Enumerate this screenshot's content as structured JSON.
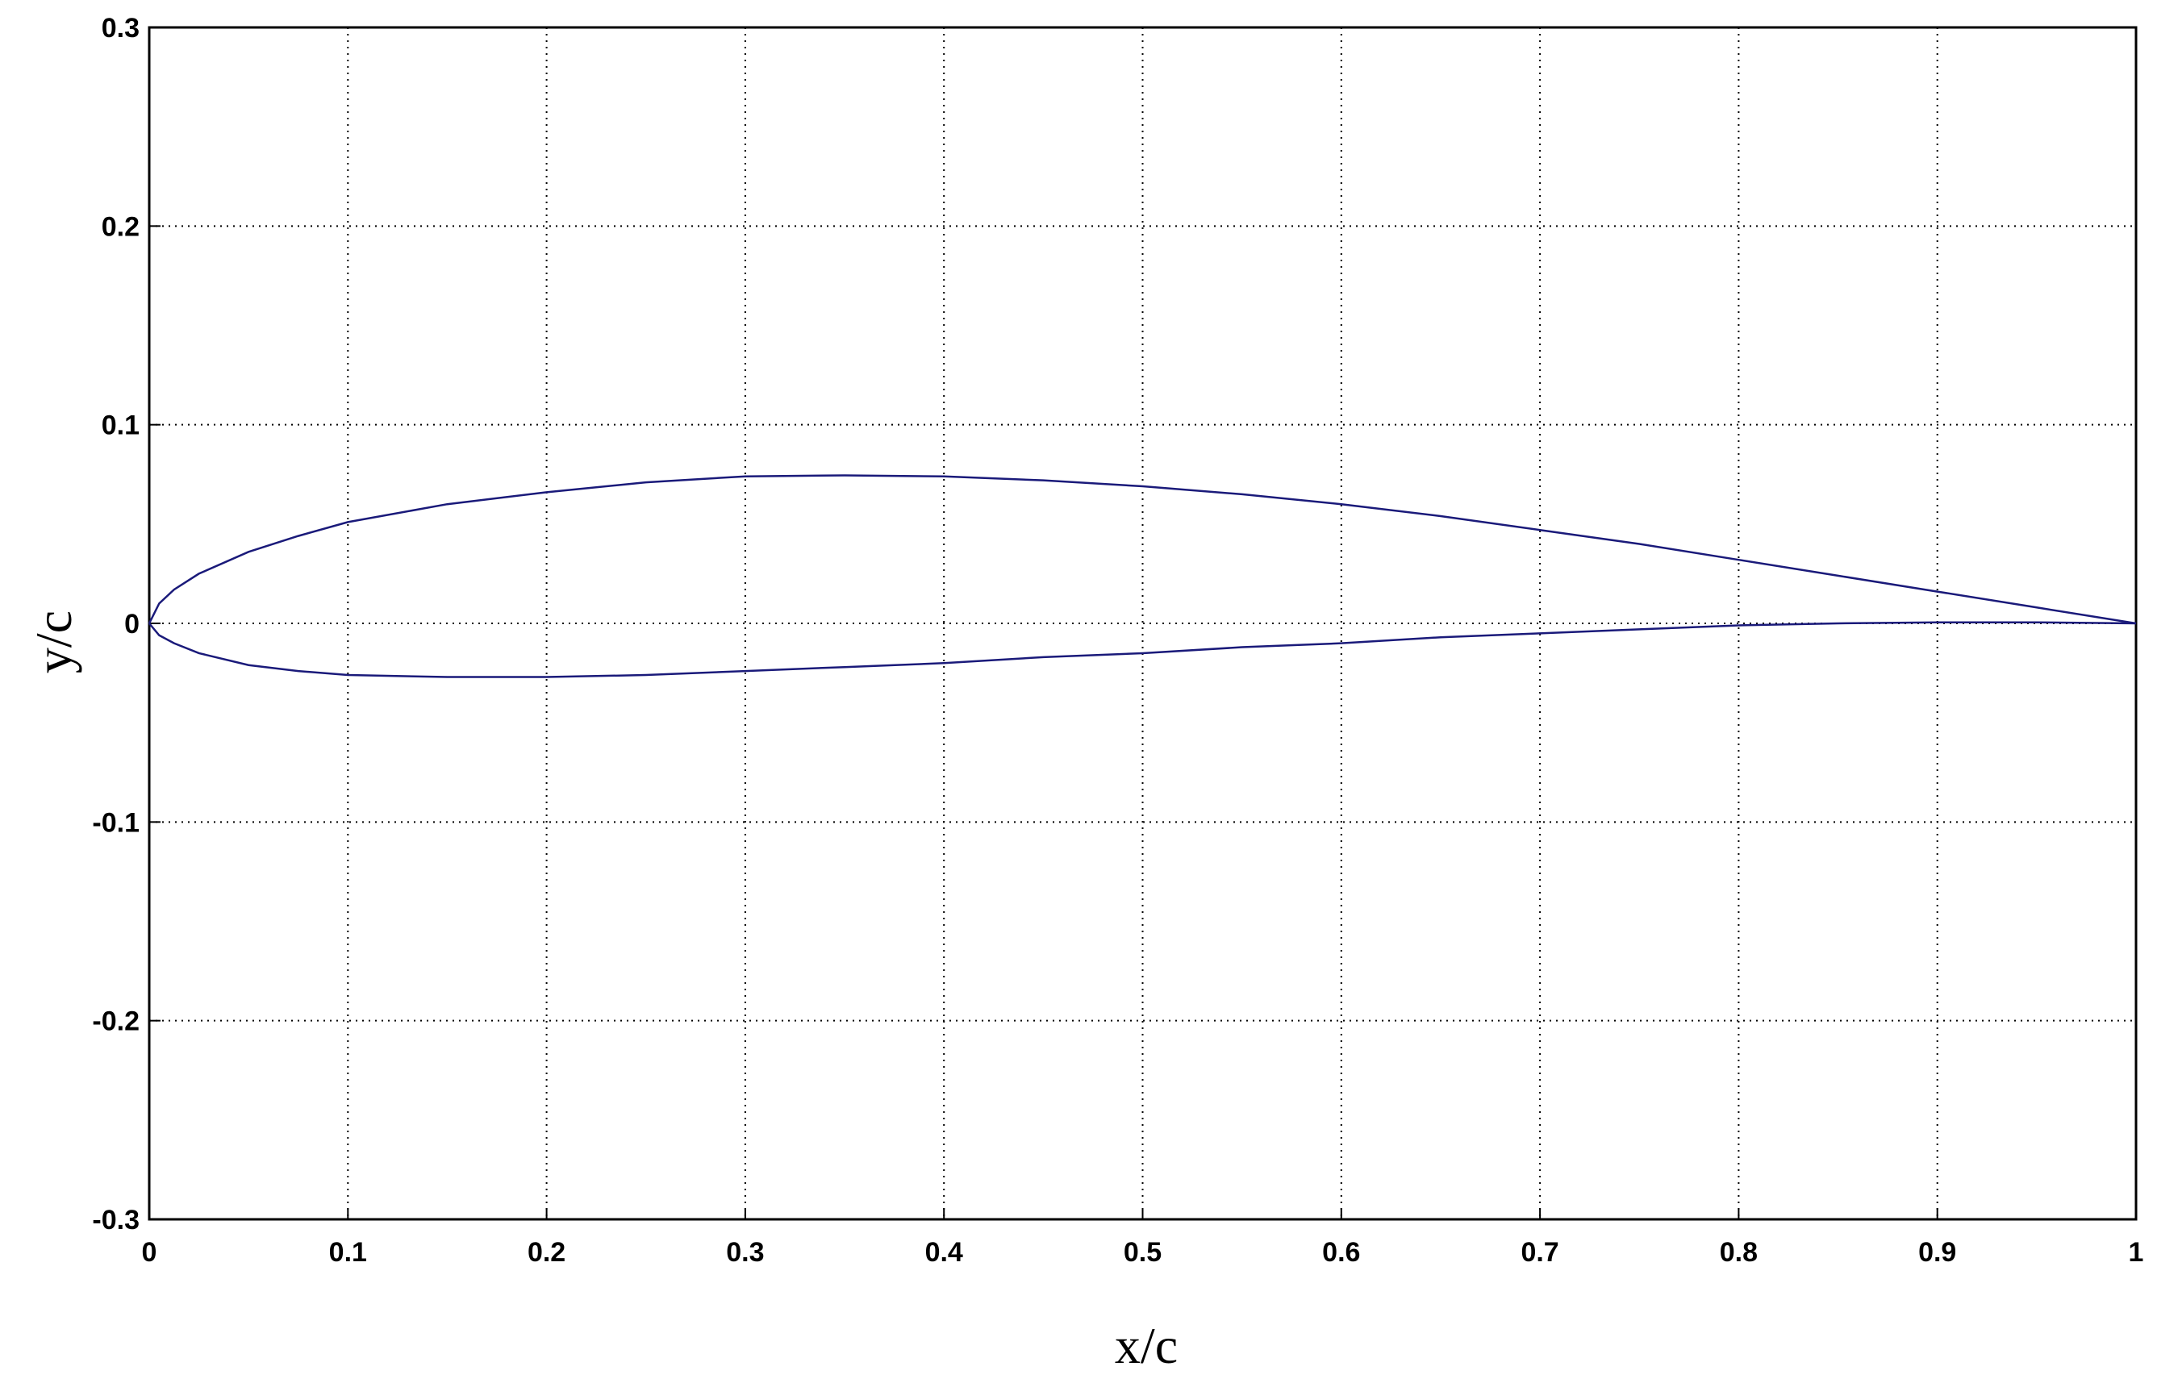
{
  "chart_data": {
    "type": "line",
    "x_label": "x/c",
    "y_label": "y/c",
    "x": [
      0,
      0.005,
      0.0125,
      0.025,
      0.05,
      0.075,
      0.1,
      0.15,
      0.2,
      0.25,
      0.3,
      0.35,
      0.4,
      0.45,
      0.5,
      0.55,
      0.6,
      0.65,
      0.7,
      0.75,
      0.8,
      0.85,
      0.9,
      0.95,
      1
    ],
    "series": [
      {
        "color": "#1a1a7a",
        "values": [
          0,
          0.01,
          0.017,
          0.025,
          0.036,
          0.044,
          0.051,
          0.06,
          0.066,
          0.071,
          0.074,
          0.0745,
          0.074,
          0.072,
          0.069,
          0.065,
          0.06,
          0.054,
          0.047,
          0.04,
          0.032,
          0.024,
          0.016,
          0.008,
          0
        ]
      },
      {
        "color": "#1a1a7a",
        "values": [
          0,
          -0.006,
          -0.01,
          -0.015,
          -0.021,
          -0.024,
          -0.026,
          -0.027,
          -0.027,
          -0.026,
          -0.024,
          -0.022,
          -0.02,
          -0.017,
          -0.015,
          -0.012,
          -0.01,
          -0.007,
          -0.005,
          -0.003,
          -0.001,
          0,
          0.0005,
          0.0005,
          0
        ]
      }
    ],
    "xlim": [
      0,
      1
    ],
    "ylim": [
      -0.3,
      0.3
    ],
    "xticks": [
      0,
      0.1,
      0.2,
      0.3,
      0.4,
      0.5,
      0.6,
      0.7,
      0.8,
      0.9,
      1
    ],
    "yticks": [
      -0.3,
      -0.2,
      -0.1,
      0,
      0.1,
      0.2,
      0.3
    ],
    "grid": true
  }
}
